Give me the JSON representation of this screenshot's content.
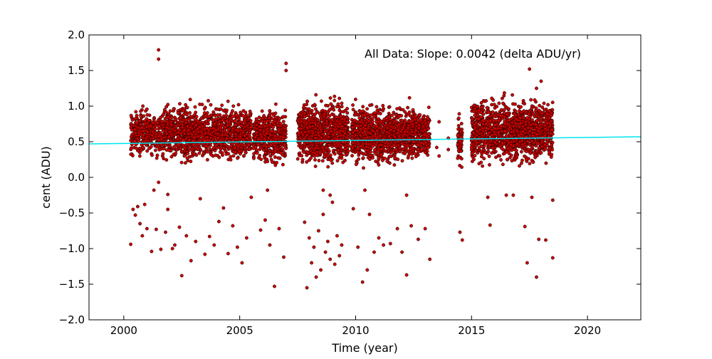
{
  "chart_data": {
    "type": "scatter",
    "title": "",
    "xlabel": "Time (year)",
    "ylabel": "cent (ADU)",
    "xlim": [
      1998.5,
      2022.3
    ],
    "ylim": [
      -2.0,
      2.0
    ],
    "xticks": [
      2000,
      2005,
      2010,
      2015,
      2020
    ],
    "xtick_labels": [
      "2000",
      "2005",
      "2010",
      "2015",
      "2020"
    ],
    "yticks": [
      -2.0,
      -1.5,
      -1.0,
      -0.5,
      0.0,
      0.5,
      1.0,
      1.5,
      2.0
    ],
    "ytick_labels": [
      "−2.0",
      "−1.5",
      "−1.0",
      "−0.5",
      "0.0",
      "0.5",
      "1.0",
      "1.5",
      "2.0"
    ],
    "grid": false,
    "annotation": "All Data: Slope:  0.0042 (delta ADU/yr)",
    "marker_color": "#cc0000",
    "marker_edge_color": "#000000",
    "fit_line_color": "#00e5ee",
    "fit_line": {
      "slope": 0.0042,
      "x": [
        1998.5,
        2022.3
      ],
      "y": [
        0.47,
        0.57
      ]
    },
    "series": [
      {
        "clusters": [
          {
            "x_range": [
              2000.3,
              2001.8
            ],
            "y_range": [
              0.25,
              1.0
            ],
            "density": 380
          },
          {
            "x_range": [
              2001.8,
              2005.5
            ],
            "y_range": [
              0.2,
              1.05
            ],
            "density": 1200
          },
          {
            "x_range": [
              2005.6,
              2007.0
            ],
            "y_range": [
              0.15,
              1.0
            ],
            "density": 450
          },
          {
            "x_range": [
              2007.5,
              2009.7
            ],
            "y_range": [
              0.15,
              1.1
            ],
            "density": 850
          },
          {
            "x_range": [
              2009.8,
              2013.2
            ],
            "y_range": [
              0.15,
              1.05
            ],
            "density": 1200
          },
          {
            "x_range": [
              2014.4,
              2014.6
            ],
            "y_range": [
              0.1,
              1.0
            ],
            "density": 60
          },
          {
            "x_range": [
              2015.0,
              2018.5
            ],
            "y_range": [
              0.15,
              1.15
            ],
            "density": 1300
          }
        ],
        "outliers": [
          {
            "x": 2000.3,
            "y": -0.94
          },
          {
            "x": 2000.4,
            "y": -0.45
          },
          {
            "x": 2000.5,
            "y": -0.53
          },
          {
            "x": 2000.6,
            "y": -0.41
          },
          {
            "x": 2000.7,
            "y": -0.65
          },
          {
            "x": 2000.8,
            "y": -0.82
          },
          {
            "x": 2000.9,
            "y": -0.38
          },
          {
            "x": 2001.0,
            "y": -0.72
          },
          {
            "x": 2001.2,
            "y": -1.04
          },
          {
            "x": 2001.4,
            "y": -0.73
          },
          {
            "x": 2001.6,
            "y": -1.01
          },
          {
            "x": 2001.8,
            "y": -0.77
          },
          {
            "x": 2001.9,
            "y": -0.45
          },
          {
            "x": 2002.1,
            "y": -1.0
          },
          {
            "x": 2002.2,
            "y": -0.95
          },
          {
            "x": 2002.4,
            "y": -0.7
          },
          {
            "x": 2002.5,
            "y": -1.38
          },
          {
            "x": 2002.7,
            "y": -0.82
          },
          {
            "x": 2002.9,
            "y": -1.17
          },
          {
            "x": 2003.1,
            "y": -0.9
          },
          {
            "x": 2003.3,
            "y": -0.3
          },
          {
            "x": 2003.5,
            "y": -1.08
          },
          {
            "x": 2003.7,
            "y": -0.83
          },
          {
            "x": 2003.9,
            "y": -0.95
          },
          {
            "x": 2004.1,
            "y": -0.62
          },
          {
            "x": 2004.3,
            "y": -0.43
          },
          {
            "x": 2004.5,
            "y": -1.07
          },
          {
            "x": 2004.7,
            "y": -0.68
          },
          {
            "x": 2004.9,
            "y": -0.98
          },
          {
            "x": 2005.1,
            "y": -1.2
          },
          {
            "x": 2005.3,
            "y": -0.85
          },
          {
            "x": 2005.5,
            "y": -0.28
          },
          {
            "x": 2001.5,
            "y": 1.79
          },
          {
            "x": 2001.5,
            "y": 1.66
          },
          {
            "x": 2001.5,
            "y": -0.07
          },
          {
            "x": 2001.3,
            "y": -0.18
          },
          {
            "x": 2001.9,
            "y": -0.24
          },
          {
            "x": 2005.9,
            "y": -0.74
          },
          {
            "x": 2006.1,
            "y": -0.6
          },
          {
            "x": 2006.3,
            "y": -0.95
          },
          {
            "x": 2006.5,
            "y": -1.53
          },
          {
            "x": 2006.7,
            "y": -0.72
          },
          {
            "x": 2006.9,
            "y": -1.12
          },
          {
            "x": 2006.2,
            "y": -0.18
          },
          {
            "x": 2007.0,
            "y": 1.6
          },
          {
            "x": 2007.0,
            "y": 1.5
          },
          {
            "x": 2007.8,
            "y": -0.63
          },
          {
            "x": 2007.9,
            "y": -1.55
          },
          {
            "x": 2008.0,
            "y": -0.85
          },
          {
            "x": 2008.1,
            "y": -1.2
          },
          {
            "x": 2008.2,
            "y": -0.98
          },
          {
            "x": 2008.3,
            "y": -1.4
          },
          {
            "x": 2008.4,
            "y": -0.75
          },
          {
            "x": 2008.5,
            "y": -1.3
          },
          {
            "x": 2008.6,
            "y": -0.52
          },
          {
            "x": 2008.7,
            "y": -1.05
          },
          {
            "x": 2008.8,
            "y": -0.9
          },
          {
            "x": 2008.9,
            "y": -1.15
          },
          {
            "x": 2009.0,
            "y": -0.35
          },
          {
            "x": 2009.1,
            "y": -1.22
          },
          {
            "x": 2009.2,
            "y": -0.82
          },
          {
            "x": 2009.3,
            "y": -1.1
          },
          {
            "x": 2009.4,
            "y": -0.95
          },
          {
            "x": 2008.6,
            "y": -0.18
          },
          {
            "x": 2008.9,
            "y": -0.25
          },
          {
            "x": 2009.9,
            "y": -0.44
          },
          {
            "x": 2010.1,
            "y": -0.98
          },
          {
            "x": 2010.3,
            "y": -1.47
          },
          {
            "x": 2010.5,
            "y": -1.3
          },
          {
            "x": 2010.6,
            "y": -0.52
          },
          {
            "x": 2010.8,
            "y": -1.05
          },
          {
            "x": 2011.0,
            "y": -0.85
          },
          {
            "x": 2011.2,
            "y": -0.95
          },
          {
            "x": 2011.5,
            "y": -0.93
          },
          {
            "x": 2011.8,
            "y": -0.72
          },
          {
            "x": 2012.0,
            "y": -1.05
          },
          {
            "x": 2012.2,
            "y": -1.37
          },
          {
            "x": 2012.4,
            "y": -0.68
          },
          {
            "x": 2012.7,
            "y": -0.87
          },
          {
            "x": 2013.0,
            "y": -0.72
          },
          {
            "x": 2013.2,
            "y": -1.15
          },
          {
            "x": 2010.4,
            "y": -0.18
          },
          {
            "x": 2012.2,
            "y": -0.25
          },
          {
            "x": 2013.5,
            "y": 0.42
          },
          {
            "x": 2013.6,
            "y": 0.3
          },
          {
            "x": 2013.6,
            "y": 0.78
          },
          {
            "x": 2014.0,
            "y": 0.55
          },
          {
            "x": 2014.0,
            "y": 0.39
          },
          {
            "x": 2014.5,
            "y": -0.77
          },
          {
            "x": 2014.6,
            "y": -0.88
          },
          {
            "x": 2015.7,
            "y": -0.28
          },
          {
            "x": 2015.8,
            "y": -0.67
          },
          {
            "x": 2016.5,
            "y": -0.25
          },
          {
            "x": 2016.8,
            "y": -0.25
          },
          {
            "x": 2017.3,
            "y": -0.69
          },
          {
            "x": 2017.4,
            "y": -1.2
          },
          {
            "x": 2017.6,
            "y": -0.28
          },
          {
            "x": 2017.9,
            "y": -0.87
          },
          {
            "x": 2018.2,
            "y": -0.88
          },
          {
            "x": 2018.5,
            "y": -1.13
          },
          {
            "x": 2017.8,
            "y": -1.4
          },
          {
            "x": 2018.5,
            "y": -0.32
          },
          {
            "x": 2017.5,
            "y": 1.52
          },
          {
            "x": 2018.0,
            "y": 1.35
          },
          {
            "x": 2017.8,
            "y": 1.25
          }
        ]
      }
    ]
  }
}
